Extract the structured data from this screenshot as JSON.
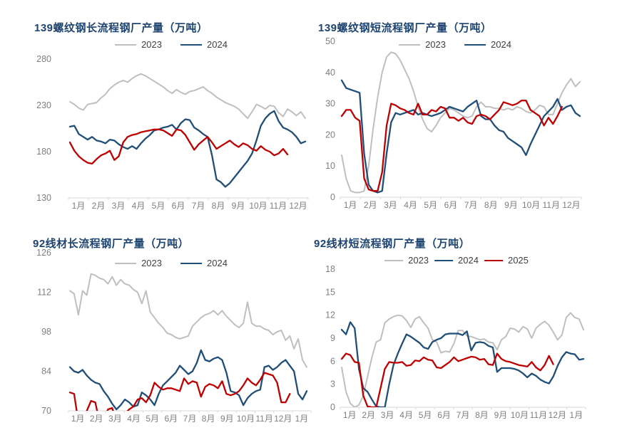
{
  "page": {
    "background": "#ffffff"
  },
  "colors": {
    "title": "#1d4370",
    "axis_label": "#7f7f7f",
    "axis_line": "#d9d9d9",
    "series_2023": "#bfbfbf",
    "series_2024": "#1f4e79",
    "series_2025": "#c00000"
  },
  "chart_data": [
    {
      "id": "rebar-long-process",
      "type": "line",
      "title": "139螺纹钢长流程钢厂产量（万吨）",
      "ylim": [
        130,
        280
      ],
      "y_ticks": [
        280,
        230,
        180,
        130
      ],
      "x_labels": [
        "1月",
        "2月",
        "3月",
        "4月",
        "5月",
        "6月",
        "7月",
        "8月",
        "9月",
        "10月",
        "11月",
        "12月"
      ],
      "legend": [
        "2023",
        "2024"
      ],
      "grid": false,
      "legend_position": "top-center",
      "series": [
        {
          "name": "2023",
          "color": "#bfbfbf",
          "values": [
            234,
            231,
            227,
            225,
            231,
            232,
            233,
            238,
            242,
            248,
            252,
            255,
            257,
            255,
            259,
            262,
            264,
            262,
            259,
            256,
            253,
            250,
            246,
            243,
            247,
            244,
            242,
            245,
            246,
            248,
            250,
            246,
            243,
            239,
            236,
            233,
            231,
            229,
            226,
            221,
            216,
            223,
            231,
            229,
            226,
            230,
            229,
            222,
            218,
            226,
            223,
            219,
            223,
            216
          ]
        },
        {
          "name": "2024",
          "color": "#1f4e79",
          "values": [
            207,
            208,
            199,
            196,
            193,
            196,
            192,
            191,
            189,
            193,
            192,
            188,
            185,
            183,
            186,
            183,
            189,
            194,
            198,
            203,
            204,
            206,
            207,
            209,
            204,
            211,
            215,
            214,
            206,
            203,
            199,
            196,
            176,
            150,
            147,
            142,
            146,
            152,
            158,
            164,
            170,
            178,
            192,
            208,
            216,
            221,
            224,
            213,
            206,
            204,
            201,
            196,
            189,
            191
          ]
        },
        {
          "name": "2025",
          "color": "#c00000",
          "values": [
            190,
            181,
            175,
            171,
            168,
            167,
            172,
            176,
            178,
            181,
            171,
            175,
            190,
            196,
            198,
            199,
            201,
            202,
            203,
            204,
            204,
            203,
            200,
            197,
            204,
            203,
            198,
            190,
            182,
            188,
            192,
            196,
            190,
            183,
            186,
            189,
            192,
            188,
            185,
            189,
            187,
            183,
            181,
            186,
            182,
            180,
            176,
            178,
            183,
            177
          ]
        }
      ]
    },
    {
      "id": "rebar-short-process",
      "type": "line",
      "title": "139螺纹钢短流程钢厂产量（万吨）",
      "ylim": [
        0,
        50
      ],
      "y_ticks": [
        50,
        40,
        30,
        20,
        10,
        0
      ],
      "x_labels": [
        "1月",
        "2月",
        "3月",
        "4月",
        "5月",
        "6月",
        "7月",
        "8月",
        "9月",
        "10月",
        "11月",
        "12月"
      ],
      "legend": [
        "2023",
        "2024"
      ],
      "grid": false,
      "legend_position": "top-center",
      "series": [
        {
          "name": "2023",
          "color": "#bfbfbf",
          "values": [
            13.5,
            6,
            2,
            1.5,
            1.5,
            2,
            10,
            22,
            32,
            40,
            45,
            46.5,
            46,
            44,
            41,
            38,
            34,
            29,
            25,
            22,
            21,
            23,
            25.5,
            27,
            28.5,
            28,
            27,
            26,
            25.5,
            26,
            29,
            30.5,
            29,
            29,
            28.5,
            28.5,
            28,
            28.5,
            28,
            29,
            28.5,
            27.5,
            27,
            28,
            29.5,
            29,
            26.5,
            26.5,
            30,
            33.5,
            36,
            38,
            35.5,
            37
          ]
        },
        {
          "name": "2024",
          "color": "#1f4e79",
          "values": [
            37.5,
            35,
            34.5,
            34,
            33.5,
            14,
            4,
            2,
            1.5,
            2,
            14,
            24,
            27,
            26.5,
            27,
            27.5,
            28,
            26.5,
            27,
            26.5,
            26,
            26.5,
            27,
            28,
            29,
            28.5,
            28,
            27.5,
            29,
            30,
            31,
            26,
            25,
            25,
            23,
            21.5,
            21,
            19,
            18,
            17,
            16,
            13.5,
            17,
            20,
            23,
            26,
            27.5,
            29,
            31.5,
            28,
            29,
            29.5,
            27,
            26
          ]
        },
        {
          "name": "2025",
          "color": "#c00000",
          "values": [
            26,
            28,
            28,
            25.5,
            24.5,
            6,
            2.5,
            2,
            2,
            8,
            23,
            30,
            29.5,
            28.5,
            28,
            27,
            26.5,
            30,
            26.5,
            26.5,
            28,
            27.5,
            29,
            28.5,
            25.5,
            25.5,
            24.5,
            25.5,
            24,
            23.5,
            26,
            26.5,
            26,
            25,
            26.5,
            28,
            30.5,
            30,
            29.5,
            30,
            31,
            31,
            28,
            27,
            26,
            23,
            25.5,
            23.5,
            26,
            29
          ]
        }
      ]
    },
    {
      "id": "wirerod-long-process",
      "type": "line",
      "title": "92线材长流程钢厂产量（万吨）",
      "ylim": [
        70,
        126
      ],
      "y_ticks": [
        126,
        112,
        98,
        84,
        70
      ],
      "x_labels": [
        "1月",
        "2月",
        "3月",
        "4月",
        "5月",
        "6月",
        "7月",
        "8月",
        "9月",
        "10月",
        "11月",
        "12月",
        "1月"
      ],
      "legend": [
        "2023",
        "2024"
      ],
      "grid": false,
      "legend_position": "top-center",
      "series": [
        {
          "name": "2023",
          "color": "#bfbfbf",
          "values": [
            112.5,
            111.5,
            104,
            112.5,
            111,
            118.5,
            118,
            117,
            116.5,
            115,
            117.5,
            114.5,
            116.5,
            115,
            114.5,
            113,
            112,
            108,
            112.5,
            105,
            103,
            101,
            99.5,
            97.5,
            97,
            96,
            95.5,
            96,
            96.5,
            100,
            101.5,
            103,
            104,
            104.5,
            105.5,
            104,
            105.5,
            103.5,
            102,
            100.5,
            99.5,
            101,
            108.5,
            101,
            100,
            100,
            99,
            98.5,
            97,
            98,
            98.5,
            95,
            96.5,
            92,
            95.5,
            88,
            85.5
          ]
        },
        {
          "name": "2024",
          "color": "#1f4e79",
          "values": [
            85.5,
            84,
            83.5,
            84.5,
            82.5,
            81,
            80,
            79.5,
            77,
            75,
            72.5,
            70.5,
            72,
            74,
            73,
            71.5,
            72,
            76.5,
            75.5,
            74,
            72,
            76,
            79,
            80.5,
            82,
            83.5,
            86,
            84.5,
            83,
            84,
            87,
            91.5,
            88,
            87.5,
            88.5,
            89,
            88,
            83.5,
            77,
            76.5,
            75.5,
            72,
            74.5,
            76,
            77,
            77.5,
            85.5,
            86,
            84.5,
            85.5,
            87,
            88,
            86,
            84,
            76,
            74,
            77
          ]
        },
        {
          "name": "2025",
          "color": "#c00000",
          "values": [
            76.5,
            76,
            66,
            66,
            70,
            73.5,
            73,
            66,
            67,
            70.5,
            71,
            66,
            67,
            69,
            70.5,
            71.5,
            74,
            74.5,
            73,
            75.5,
            80,
            78.5,
            77.5,
            78,
            78,
            77.5,
            77,
            81.5,
            79.5,
            80.5,
            80,
            75,
            78.5,
            79.5,
            79,
            78,
            80.5,
            76,
            75.5,
            76,
            77,
            79,
            81.5,
            80,
            79,
            81,
            83.5,
            83,
            82.5,
            80,
            73,
            73,
            76
          ]
        }
      ]
    },
    {
      "id": "wirerod-short-process",
      "type": "line",
      "title": "92线材短流程钢厂产量（万吨）",
      "ylim": [
        0,
        18
      ],
      "y_ticks": [
        18,
        15,
        12,
        9,
        6,
        3,
        0
      ],
      "x_labels": [
        "1月",
        "2月",
        "3月",
        "4月",
        "5月",
        "6月",
        "7月",
        "8月",
        "9月",
        "10月",
        "11月",
        "12月",
        "1月"
      ],
      "legend": [
        "2023",
        "2024",
        "2025"
      ],
      "grid": false,
      "legend_position": "top-center",
      "series": [
        {
          "name": "2023",
          "color": "#bfbfbf",
          "values": [
            5.2,
            2,
            0.5,
            0,
            0.3,
            1.5,
            4,
            6.5,
            8.5,
            8.8,
            11,
            11.5,
            11.8,
            12,
            11.9,
            11.3,
            10.4,
            11.5,
            11.8,
            11,
            10.3,
            8.8,
            8.5,
            7.1,
            7.3,
            7.2,
            8.3,
            10,
            10,
            9.3,
            9.2,
            9,
            8.8,
            8.9,
            8.5,
            8.4,
            7.5,
            8.8,
            9.2,
            10.3,
            10.2,
            9.8,
            10.5,
            10.2,
            9,
            10.3,
            10.8,
            11.2,
            10.7,
            9.8,
            8.8,
            9.4,
            11.7,
            12.3,
            11.7,
            11.5,
            10.1
          ]
        },
        {
          "name": "2024",
          "color": "#1f4e79",
          "values": [
            10.1,
            9.5,
            11.1,
            10.3,
            5,
            2.5,
            2,
            1,
            0.1,
            0,
            0,
            3,
            5.5,
            7,
            8.3,
            9.5,
            9.2,
            8.8,
            8.4,
            7.8,
            7.6,
            8.5,
            8.8,
            9,
            9.5,
            9.6,
            9.6,
            9.6,
            9.4,
            9.9,
            7.4,
            8.4,
            8.5,
            8.4,
            8,
            7.8,
            4.6,
            5.1,
            5.1,
            5.1,
            5,
            4.8,
            4.4,
            3.9,
            4.4,
            4.1,
            3.6,
            3.3,
            3.1,
            4,
            5.4,
            6.5,
            7.2,
            7,
            6.9,
            6.2,
            6.3
          ]
        },
        {
          "name": "2025",
          "color": "#c00000",
          "values": [
            6.3,
            7,
            6.8,
            5.9,
            5.8,
            1.5,
            0.1,
            0,
            0,
            2.5,
            5,
            5.9,
            5.8,
            5.8,
            5.9,
            5.4,
            5.5,
            6.1,
            6,
            6.5,
            6.2,
            6.1,
            5.2,
            5.1,
            5.5,
            5.9,
            6.5,
            6,
            6.2,
            6.4,
            6.6,
            6.5,
            6.2,
            6.3,
            5.6,
            5.5,
            7,
            6.3,
            6,
            5.9,
            5.7,
            5.5,
            5.4,
            5.3,
            5.9,
            5.2,
            4.8,
            5.5,
            6.7,
            5.6
          ]
        }
      ]
    }
  ]
}
